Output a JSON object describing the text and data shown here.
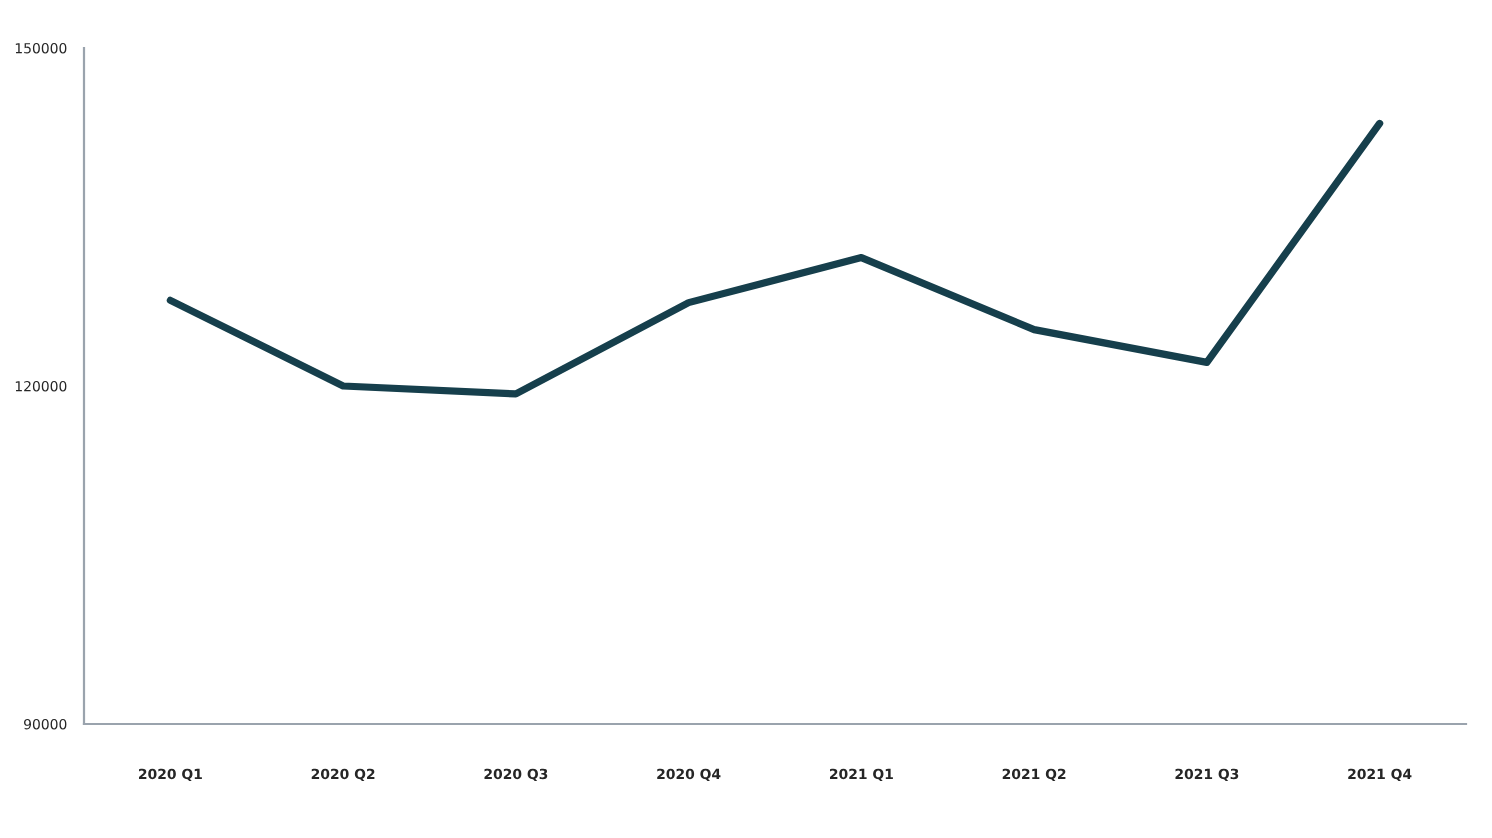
{
  "chart_data": {
    "type": "line",
    "categories": [
      "2020 Q1",
      "2020 Q2",
      "2020 Q3",
      "2020 Q4",
      "2021 Q1",
      "2021 Q2",
      "2021 Q3",
      "2021 Q4"
    ],
    "series": [
      {
        "color": "#163f4c",
        "values": [
          127600,
          120000,
          119300,
          127400,
          131400,
          125000,
          122100,
          143300
        ]
      }
    ],
    "ylim": [
      90000,
      150000
    ],
    "yticks": [
      90000,
      120000,
      150000
    ],
    "grid": false,
    "legend": false,
    "marker": "none",
    "line_style": "solid"
  }
}
